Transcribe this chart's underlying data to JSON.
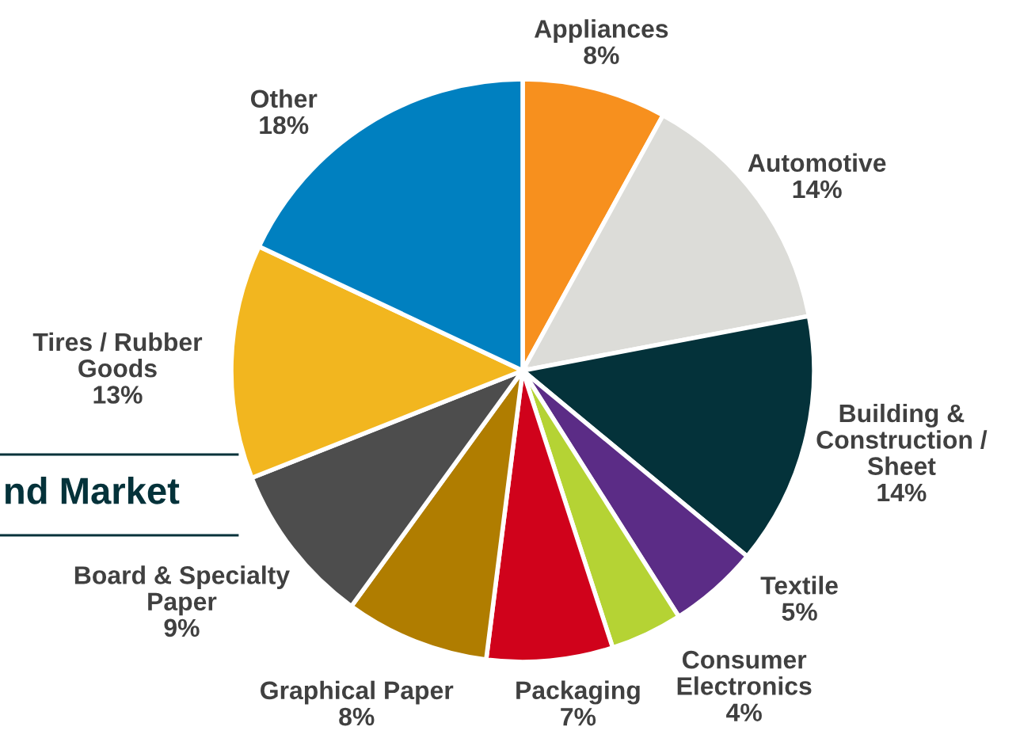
{
  "chart_data": {
    "type": "pie",
    "title": "nd Market",
    "categories": [
      "Appliances",
      "Automotive",
      "Building &\nConstruction /\nSheet",
      "Textile",
      "Consumer\nElectronics",
      "Packaging",
      "Graphical Paper",
      "Board & Specialty\nPaper",
      "Tires / Rubber\nGoods",
      "Other"
    ],
    "values": [
      8,
      14,
      14,
      5,
      4,
      7,
      8,
      9,
      13,
      18
    ],
    "value_labels": [
      "8%",
      "14%",
      "14%",
      "5%",
      "4%",
      "7%",
      "8%",
      "9%",
      "13%",
      "18%"
    ],
    "colors": [
      "#f7901e",
      "#dcdcd8",
      "#04323a",
      "#5b2c86",
      "#b5d334",
      "#d0021b",
      "#b07d00",
      "#4d4d4d",
      "#f2b61f",
      "#0080c0"
    ]
  }
}
